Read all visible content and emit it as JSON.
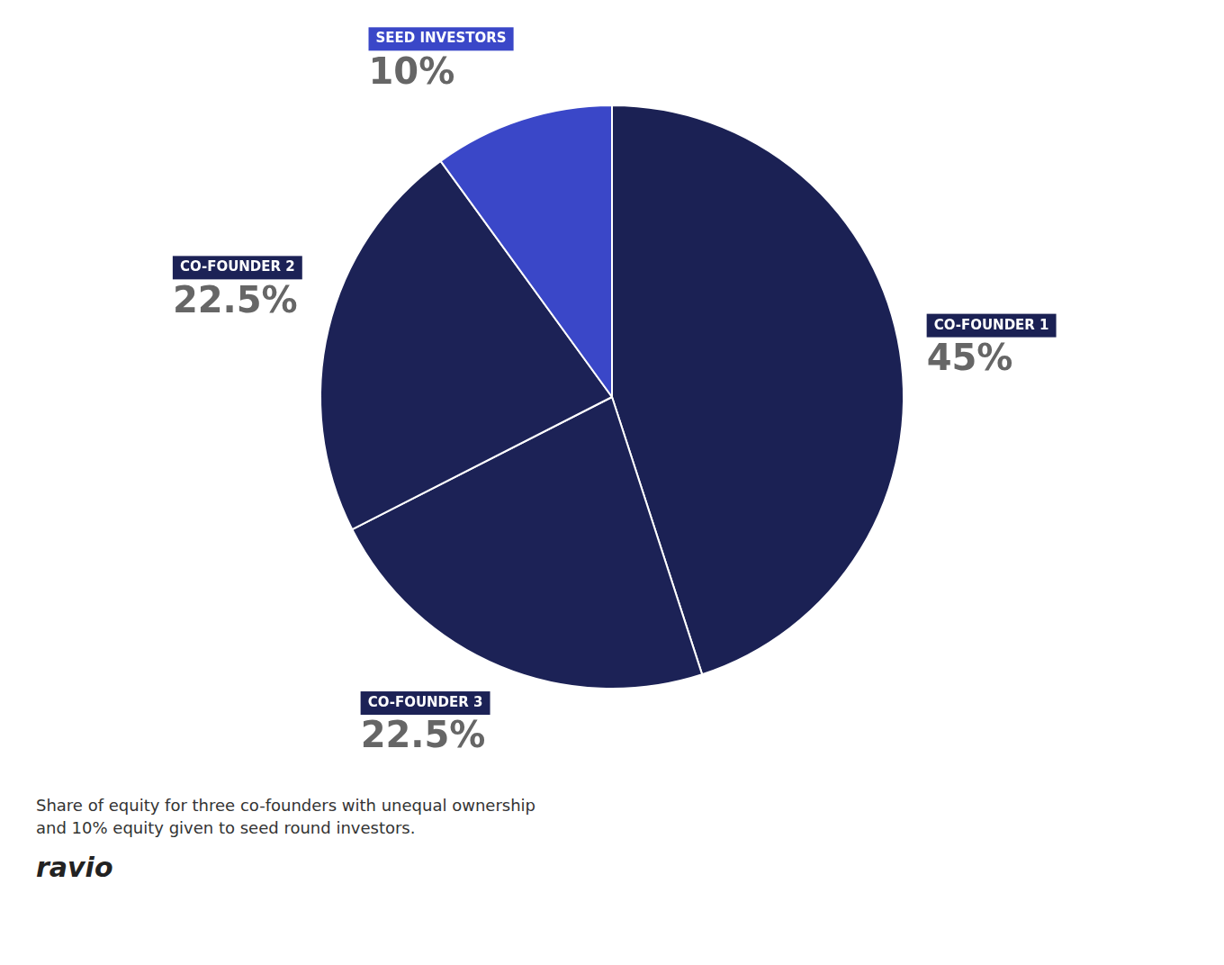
{
  "chart_data": {
    "type": "pie",
    "categories": [
      "CO-FOUNDER 1",
      "CO-FOUNDER 3",
      "CO-FOUNDER 2",
      "SEED INVESTORS"
    ],
    "values": [
      45,
      22.5,
      22.5,
      10
    ],
    "value_labels": [
      "45%",
      "22.5%",
      "22.5%",
      "10%"
    ],
    "colors": [
      "#1b2154",
      "#1c2256",
      "#1c2256",
      "#3a47c8"
    ],
    "data_labels": true,
    "subtitle": [
      "Share of equity for three co-founders with unequal ownership",
      "and 10% equity given to seed round investors."
    ],
    "annotations": [
      "ravio"
    ]
  }
}
